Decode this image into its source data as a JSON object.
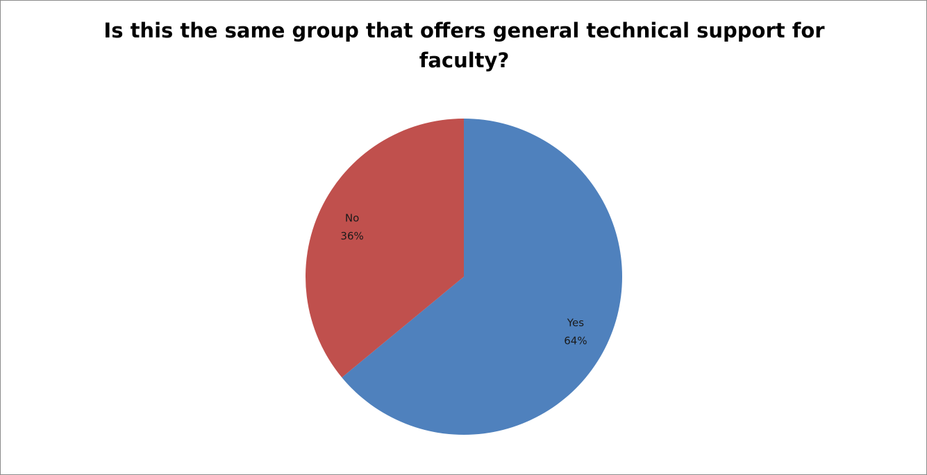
{
  "chart_data": {
    "type": "pie",
    "title": "Is this the same group that offers general technical support for faculty?",
    "slices": [
      {
        "label": "Yes",
        "value": 64,
        "value_label": "64%",
        "color": "#4f81bd"
      },
      {
        "label": "No",
        "value": 36,
        "value_label": "36%",
        "color": "#c0504d"
      }
    ],
    "start_angle_deg": 0,
    "direction": "clockwise",
    "legend": "none",
    "data_labels": "category and percentage inside slices"
  }
}
